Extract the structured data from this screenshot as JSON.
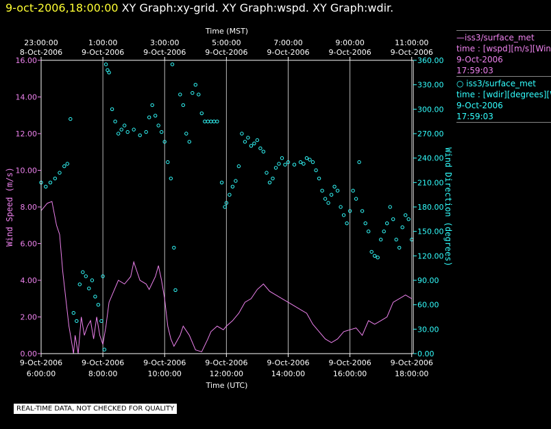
{
  "header": {
    "datetime": "9-oct-2006,18:00:00",
    "graphs": "XY Graph:xy-grid.  XY Graph:wspd.  XY Graph:wdir."
  },
  "note": "REAL-TIME DATA, NOT CHECKED FOR QUALITY",
  "legend": [
    {
      "line1": "—iss3/surface_met",
      "line2": "time : [wspd][m/s][Wind Speed]",
      "line3": "9-Oct-2006",
      "line4": "17:59:03"
    },
    {
      "line1": "○ iss3/surface_met",
      "line2": "time : [wdir][degrees][Wind Direction]",
      "line3": "9-Oct-2006",
      "line4": "17:59:03"
    }
  ],
  "colors": {
    "wspd": "#ee82ee",
    "wdir": "#33ffff",
    "grid": "#bbbbbb",
    "axis": "#ffffff"
  },
  "chart_data": {
    "type": "line",
    "top_axis": {
      "title": "Time (MST)",
      "ticks": [
        {
          "hours": 0,
          "t": "23:00:00",
          "d": "8-Oct-2006"
        },
        {
          "hours": 2,
          "t": "1:00:00",
          "d": "9-Oct-2006"
        },
        {
          "hours": 4,
          "t": "3:00:00",
          "d": "9-Oct-2006"
        },
        {
          "hours": 6,
          "t": "5:00:00",
          "d": "9-Oct-2006"
        },
        {
          "hours": 8,
          "t": "7:00:00",
          "d": "9-Oct-2006"
        },
        {
          "hours": 10,
          "t": "9:00:00",
          "d": "9-Oct-2006"
        },
        {
          "hours": 12,
          "t": "11:00:00",
          "d": "9-Oct-2006"
        }
      ]
    },
    "bottom_axis": {
      "title": "Time (UTC)",
      "ticks": [
        {
          "hours": 0,
          "d": "9-Oct-2006",
          "t": "6:00:00"
        },
        {
          "hours": 2,
          "d": "9-Oct-2006",
          "t": "8:00:00"
        },
        {
          "hours": 4,
          "d": "9-Oct-2006",
          "t": "10:00:00"
        },
        {
          "hours": 6,
          "d": "9-Oct-2006",
          "t": "12:00:00"
        },
        {
          "hours": 8,
          "d": "9-Oct-2006",
          "t": "14:00:00"
        },
        {
          "hours": 10,
          "d": "9-Oct-2006",
          "t": "16:00:00"
        },
        {
          "hours": 12,
          "d": "9-Oct-2006",
          "t": "18:00:00"
        }
      ]
    },
    "x_range_hours": [
      0,
      12.05
    ],
    "left_axis": {
      "label": "Wind Speed (m/s)",
      "range": [
        0,
        16
      ],
      "ticks": [
        "0.00",
        "2.00",
        "4.00",
        "6.00",
        "8.00",
        "10.00",
        "12.00",
        "14.00",
        "16.00"
      ]
    },
    "right_axis": {
      "label": "Wind Direction (degrees)",
      "range": [
        0,
        360
      ],
      "ticks": [
        "0.00",
        "30.00",
        "60.00",
        "90.00",
        "120.00",
        "150.00",
        "180.00",
        "210.00",
        "240.00",
        "270.00",
        "300.00",
        "330.00",
        "360.00"
      ]
    },
    "series": [
      {
        "name": "iss3/surface_met wspd",
        "axis": "left",
        "style": "line",
        "points": [
          [
            0,
            7.8
          ],
          [
            0.2,
            8.2
          ],
          [
            0.35,
            8.3
          ],
          [
            0.5,
            7.0
          ],
          [
            0.6,
            6.5
          ],
          [
            0.7,
            4.5
          ],
          [
            0.8,
            3.0
          ],
          [
            0.9,
            1.5
          ],
          [
            1.0,
            0.5
          ],
          [
            1.05,
            0.0
          ],
          [
            1.1,
            1.0
          ],
          [
            1.2,
            0.0
          ],
          [
            1.3,
            2.0
          ],
          [
            1.4,
            1.0
          ],
          [
            1.5,
            1.5
          ],
          [
            1.6,
            1.8
          ],
          [
            1.7,
            0.8
          ],
          [
            1.8,
            2.0
          ],
          [
            1.9,
            1.0
          ],
          [
            2.0,
            0.5
          ],
          [
            2.1,
            1.5
          ],
          [
            2.2,
            2.8
          ],
          [
            2.3,
            3.2
          ],
          [
            2.5,
            4.0
          ],
          [
            2.7,
            3.8
          ],
          [
            2.9,
            4.2
          ],
          [
            3.0,
            5.0
          ],
          [
            3.1,
            4.5
          ],
          [
            3.2,
            4.0
          ],
          [
            3.4,
            3.8
          ],
          [
            3.5,
            3.5
          ],
          [
            3.7,
            4.2
          ],
          [
            3.8,
            4.8
          ],
          [
            3.9,
            4.0
          ],
          [
            4.0,
            3.0
          ],
          [
            4.1,
            1.5
          ],
          [
            4.2,
            0.8
          ],
          [
            4.3,
            0.4
          ],
          [
            4.5,
            1.0
          ],
          [
            4.6,
            1.5
          ],
          [
            4.8,
            1.0
          ],
          [
            5.0,
            0.2
          ],
          [
            5.2,
            0.1
          ],
          [
            5.4,
            0.8
          ],
          [
            5.5,
            1.2
          ],
          [
            5.7,
            1.5
          ],
          [
            5.9,
            1.3
          ],
          [
            6.0,
            1.5
          ],
          [
            6.2,
            1.8
          ],
          [
            6.4,
            2.2
          ],
          [
            6.6,
            2.8
          ],
          [
            6.8,
            3.0
          ],
          [
            7.0,
            3.5
          ],
          [
            7.2,
            3.8
          ],
          [
            7.4,
            3.4
          ],
          [
            7.6,
            3.2
          ],
          [
            7.8,
            3.0
          ],
          [
            8.0,
            2.8
          ],
          [
            8.2,
            2.6
          ],
          [
            8.4,
            2.4
          ],
          [
            8.6,
            2.2
          ],
          [
            8.8,
            1.6
          ],
          [
            9.0,
            1.2
          ],
          [
            9.2,
            0.8
          ],
          [
            9.4,
            0.6
          ],
          [
            9.6,
            0.8
          ],
          [
            9.8,
            1.2
          ],
          [
            10.0,
            1.3
          ],
          [
            10.2,
            1.4
          ],
          [
            10.4,
            1.0
          ],
          [
            10.6,
            1.8
          ],
          [
            10.8,
            1.6
          ],
          [
            11.0,
            1.8
          ],
          [
            11.2,
            2.0
          ],
          [
            11.4,
            2.8
          ],
          [
            11.6,
            3.0
          ],
          [
            11.8,
            3.2
          ],
          [
            12.0,
            3.0
          ]
        ]
      },
      {
        "name": "iss3/surface_met wdir",
        "axis": "right",
        "style": "circles",
        "points": [
          [
            0.0,
            210
          ],
          [
            0.15,
            205
          ],
          [
            0.3,
            210
          ],
          [
            0.45,
            215
          ],
          [
            0.6,
            222
          ],
          [
            0.75,
            230
          ],
          [
            0.85,
            233
          ],
          [
            0.95,
            288
          ],
          [
            1.05,
            50
          ],
          [
            1.15,
            40
          ],
          [
            1.25,
            85
          ],
          [
            1.35,
            100
          ],
          [
            1.45,
            95
          ],
          [
            1.55,
            80
          ],
          [
            1.65,
            90
          ],
          [
            1.75,
            70
          ],
          [
            1.85,
            60
          ],
          [
            1.95,
            40
          ],
          [
            2.0,
            95
          ],
          [
            2.05,
            5
          ],
          [
            2.1,
            355
          ],
          [
            2.15,
            348
          ],
          [
            2.2,
            345
          ],
          [
            2.3,
            300
          ],
          [
            2.4,
            285
          ],
          [
            2.5,
            270
          ],
          [
            2.6,
            275
          ],
          [
            2.7,
            280
          ],
          [
            2.8,
            272
          ],
          [
            3.0,
            275
          ],
          [
            3.2,
            268
          ],
          [
            3.4,
            272
          ],
          [
            3.5,
            290
          ],
          [
            3.6,
            305
          ],
          [
            3.7,
            292
          ],
          [
            3.8,
            280
          ],
          [
            3.9,
            272
          ],
          [
            4.0,
            260
          ],
          [
            4.1,
            235
          ],
          [
            4.2,
            215
          ],
          [
            4.25,
            355
          ],
          [
            4.3,
            130
          ],
          [
            4.35,
            78
          ],
          [
            4.5,
            318
          ],
          [
            4.6,
            305
          ],
          [
            4.7,
            270
          ],
          [
            4.8,
            260
          ],
          [
            4.9,
            320
          ],
          [
            5.0,
            330
          ],
          [
            5.1,
            318
          ],
          [
            5.2,
            295
          ],
          [
            5.3,
            285
          ],
          [
            5.4,
            285
          ],
          [
            5.5,
            285
          ],
          [
            5.6,
            285
          ],
          [
            5.7,
            285
          ],
          [
            5.85,
            210
          ],
          [
            5.95,
            180
          ],
          [
            6.0,
            185
          ],
          [
            6.1,
            195
          ],
          [
            6.2,
            205
          ],
          [
            6.3,
            212
          ],
          [
            6.4,
            230
          ],
          [
            6.5,
            270
          ],
          [
            6.6,
            260
          ],
          [
            6.7,
            265
          ],
          [
            6.8,
            255
          ],
          [
            6.9,
            258
          ],
          [
            7.0,
            262
          ],
          [
            7.1,
            252
          ],
          [
            7.2,
            248
          ],
          [
            7.3,
            222
          ],
          [
            7.4,
            210
          ],
          [
            7.5,
            215
          ],
          [
            7.6,
            228
          ],
          [
            7.7,
            233
          ],
          [
            7.8,
            240
          ],
          [
            7.9,
            232
          ],
          [
            8.0,
            235
          ],
          [
            8.2,
            232
          ],
          [
            8.4,
            235
          ],
          [
            8.5,
            233
          ],
          [
            8.6,
            240
          ],
          [
            8.7,
            238
          ],
          [
            8.8,
            235
          ],
          [
            8.9,
            225
          ],
          [
            9.0,
            215
          ],
          [
            9.1,
            200
          ],
          [
            9.2,
            190
          ],
          [
            9.3,
            185
          ],
          [
            9.4,
            195
          ],
          [
            9.5,
            205
          ],
          [
            9.6,
            200
          ],
          [
            9.7,
            180
          ],
          [
            9.8,
            170
          ],
          [
            9.9,
            160
          ],
          [
            10.0,
            175
          ],
          [
            10.1,
            200
          ],
          [
            10.2,
            190
          ],
          [
            10.3,
            235
          ],
          [
            10.4,
            175
          ],
          [
            10.5,
            160
          ],
          [
            10.6,
            150
          ],
          [
            10.7,
            125
          ],
          [
            10.8,
            120
          ],
          [
            10.9,
            118
          ],
          [
            11.0,
            140
          ],
          [
            11.1,
            150
          ],
          [
            11.2,
            160
          ],
          [
            11.3,
            180
          ],
          [
            11.4,
            165
          ],
          [
            11.5,
            140
          ],
          [
            11.6,
            130
          ],
          [
            11.7,
            155
          ],
          [
            11.8,
            170
          ],
          [
            11.9,
            165
          ],
          [
            12.0,
            140
          ]
        ]
      }
    ]
  }
}
